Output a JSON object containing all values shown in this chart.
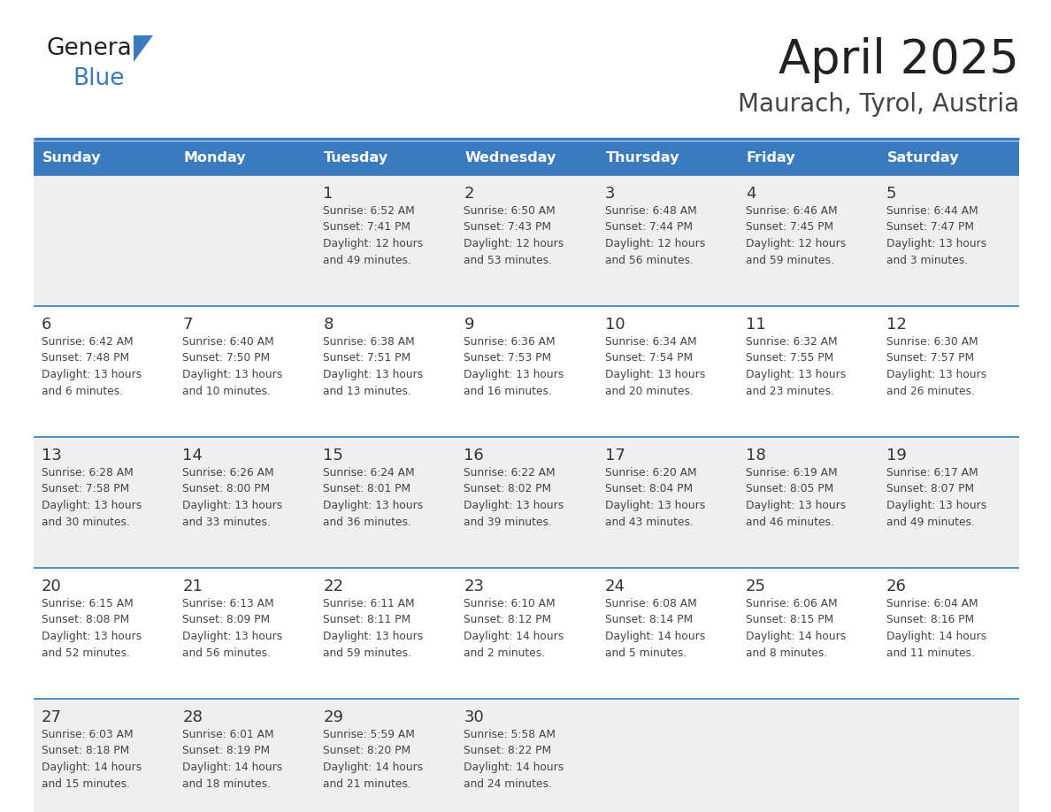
{
  "title": "April 2025",
  "subtitle": "Maurach, Tyrol, Austria",
  "header_bg": "#3a7abf",
  "header_text_color": "#ffffff",
  "row_bg_odd": "#efefef",
  "row_bg_even": "#ffffff",
  "separator_color": "#3a7abf",
  "text_color": "#444444",
  "day_num_color": "#333333",
  "days_of_week": [
    "Sunday",
    "Monday",
    "Tuesday",
    "Wednesday",
    "Thursday",
    "Friday",
    "Saturday"
  ],
  "weeks": [
    [
      {
        "day": "",
        "info": ""
      },
      {
        "day": "",
        "info": ""
      },
      {
        "day": "1",
        "info": "Sunrise: 6:52 AM\nSunset: 7:41 PM\nDaylight: 12 hours\nand 49 minutes."
      },
      {
        "day": "2",
        "info": "Sunrise: 6:50 AM\nSunset: 7:43 PM\nDaylight: 12 hours\nand 53 minutes."
      },
      {
        "day": "3",
        "info": "Sunrise: 6:48 AM\nSunset: 7:44 PM\nDaylight: 12 hours\nand 56 minutes."
      },
      {
        "day": "4",
        "info": "Sunrise: 6:46 AM\nSunset: 7:45 PM\nDaylight: 12 hours\nand 59 minutes."
      },
      {
        "day": "5",
        "info": "Sunrise: 6:44 AM\nSunset: 7:47 PM\nDaylight: 13 hours\nand 3 minutes."
      }
    ],
    [
      {
        "day": "6",
        "info": "Sunrise: 6:42 AM\nSunset: 7:48 PM\nDaylight: 13 hours\nand 6 minutes."
      },
      {
        "day": "7",
        "info": "Sunrise: 6:40 AM\nSunset: 7:50 PM\nDaylight: 13 hours\nand 10 minutes."
      },
      {
        "day": "8",
        "info": "Sunrise: 6:38 AM\nSunset: 7:51 PM\nDaylight: 13 hours\nand 13 minutes."
      },
      {
        "day": "9",
        "info": "Sunrise: 6:36 AM\nSunset: 7:53 PM\nDaylight: 13 hours\nand 16 minutes."
      },
      {
        "day": "10",
        "info": "Sunrise: 6:34 AM\nSunset: 7:54 PM\nDaylight: 13 hours\nand 20 minutes."
      },
      {
        "day": "11",
        "info": "Sunrise: 6:32 AM\nSunset: 7:55 PM\nDaylight: 13 hours\nand 23 minutes."
      },
      {
        "day": "12",
        "info": "Sunrise: 6:30 AM\nSunset: 7:57 PM\nDaylight: 13 hours\nand 26 minutes."
      }
    ],
    [
      {
        "day": "13",
        "info": "Sunrise: 6:28 AM\nSunset: 7:58 PM\nDaylight: 13 hours\nand 30 minutes."
      },
      {
        "day": "14",
        "info": "Sunrise: 6:26 AM\nSunset: 8:00 PM\nDaylight: 13 hours\nand 33 minutes."
      },
      {
        "day": "15",
        "info": "Sunrise: 6:24 AM\nSunset: 8:01 PM\nDaylight: 13 hours\nand 36 minutes."
      },
      {
        "day": "16",
        "info": "Sunrise: 6:22 AM\nSunset: 8:02 PM\nDaylight: 13 hours\nand 39 minutes."
      },
      {
        "day": "17",
        "info": "Sunrise: 6:20 AM\nSunset: 8:04 PM\nDaylight: 13 hours\nand 43 minutes."
      },
      {
        "day": "18",
        "info": "Sunrise: 6:19 AM\nSunset: 8:05 PM\nDaylight: 13 hours\nand 46 minutes."
      },
      {
        "day": "19",
        "info": "Sunrise: 6:17 AM\nSunset: 8:07 PM\nDaylight: 13 hours\nand 49 minutes."
      }
    ],
    [
      {
        "day": "20",
        "info": "Sunrise: 6:15 AM\nSunset: 8:08 PM\nDaylight: 13 hours\nand 52 minutes."
      },
      {
        "day": "21",
        "info": "Sunrise: 6:13 AM\nSunset: 8:09 PM\nDaylight: 13 hours\nand 56 minutes."
      },
      {
        "day": "22",
        "info": "Sunrise: 6:11 AM\nSunset: 8:11 PM\nDaylight: 13 hours\nand 59 minutes."
      },
      {
        "day": "23",
        "info": "Sunrise: 6:10 AM\nSunset: 8:12 PM\nDaylight: 14 hours\nand 2 minutes."
      },
      {
        "day": "24",
        "info": "Sunrise: 6:08 AM\nSunset: 8:14 PM\nDaylight: 14 hours\nand 5 minutes."
      },
      {
        "day": "25",
        "info": "Sunrise: 6:06 AM\nSunset: 8:15 PM\nDaylight: 14 hours\nand 8 minutes."
      },
      {
        "day": "26",
        "info": "Sunrise: 6:04 AM\nSunset: 8:16 PM\nDaylight: 14 hours\nand 11 minutes."
      }
    ],
    [
      {
        "day": "27",
        "info": "Sunrise: 6:03 AM\nSunset: 8:18 PM\nDaylight: 14 hours\nand 15 minutes."
      },
      {
        "day": "28",
        "info": "Sunrise: 6:01 AM\nSunset: 8:19 PM\nDaylight: 14 hours\nand 18 minutes."
      },
      {
        "day": "29",
        "info": "Sunrise: 5:59 AM\nSunset: 8:20 PM\nDaylight: 14 hours\nand 21 minutes."
      },
      {
        "day": "30",
        "info": "Sunrise: 5:58 AM\nSunset: 8:22 PM\nDaylight: 14 hours\nand 24 minutes."
      },
      {
        "day": "",
        "info": ""
      },
      {
        "day": "",
        "info": ""
      },
      {
        "day": "",
        "info": ""
      }
    ]
  ]
}
